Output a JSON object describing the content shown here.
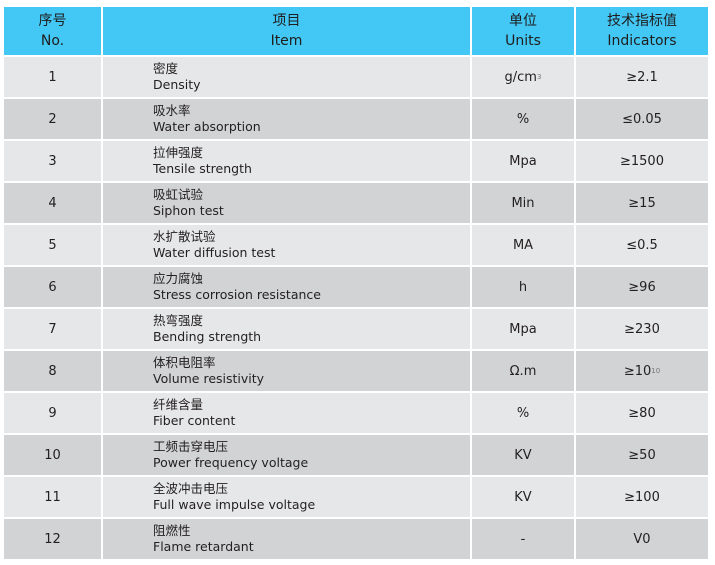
{
  "header": {
    "no": {
      "zh": "序号",
      "en": "No."
    },
    "item": {
      "zh": "项目",
      "en": "Item"
    },
    "units": {
      "zh": "单位",
      "en": "Units"
    },
    "indicators": {
      "zh": "技术指标值",
      "en": "Indicators"
    }
  },
  "colors": {
    "header": "#43c7f4",
    "row_light": "#e6e7e8",
    "row_dark": "#d1d3d4"
  },
  "rows": [
    {
      "no": "1",
      "zh": "密度",
      "en": "Density",
      "unit": "g/cm",
      "unit_sup": "3",
      "value": "≥2.1",
      "value_sup": ""
    },
    {
      "no": "2",
      "zh": "吸水率",
      "en": "Water absorption",
      "unit": "%",
      "unit_sup": "",
      "value": "≤0.05",
      "value_sup": ""
    },
    {
      "no": "3",
      "zh": "拉伸强度",
      "en": "Tensile strength",
      "unit": "Mpa",
      "unit_sup": "",
      "value": "≥1500",
      "value_sup": ""
    },
    {
      "no": "4",
      "zh": "吸虹试验",
      "en": "Siphon test",
      "unit": "Min",
      "unit_sup": "",
      "value": "≥15",
      "value_sup": ""
    },
    {
      "no": "5",
      "zh": "水扩散试验",
      "en": "Water diffusion test",
      "unit": "MA",
      "unit_sup": "",
      "value": "≤0.5",
      "value_sup": ""
    },
    {
      "no": "6",
      "zh": "应力腐蚀",
      "en": "Stress corrosion resistance",
      "unit": "h",
      "unit_sup": "",
      "value": "≥96",
      "value_sup": ""
    },
    {
      "no": "7",
      "zh": "热弯强度",
      "en": "Bending strength",
      "unit": "Mpa",
      "unit_sup": "",
      "value": "≥230",
      "value_sup": ""
    },
    {
      "no": "8",
      "zh": "体积电阻率",
      "en": "Volume resistivity",
      "unit": "Ω.m",
      "unit_sup": "",
      "value": "≥10",
      "value_sup": "10"
    },
    {
      "no": "9",
      "zh": "纤维含量",
      "en": "Fiber content",
      "unit": "%",
      "unit_sup": "",
      "value": "≥80",
      "value_sup": ""
    },
    {
      "no": "10",
      "zh": "工频击穿电压",
      "en": "Power frequency voltage",
      "unit": "KV",
      "unit_sup": "",
      "value": "≥50",
      "value_sup": ""
    },
    {
      "no": "11",
      "zh": "全波冲击电压",
      "en": "Full wave impulse voltage",
      "unit": "KV",
      "unit_sup": "",
      "value": "≥100",
      "value_sup": ""
    },
    {
      "no": "12",
      "zh": "阻燃性",
      "en": "Flame retardant",
      "unit": "-",
      "unit_sup": "",
      "value": "V0",
      "value_sup": ""
    }
  ]
}
